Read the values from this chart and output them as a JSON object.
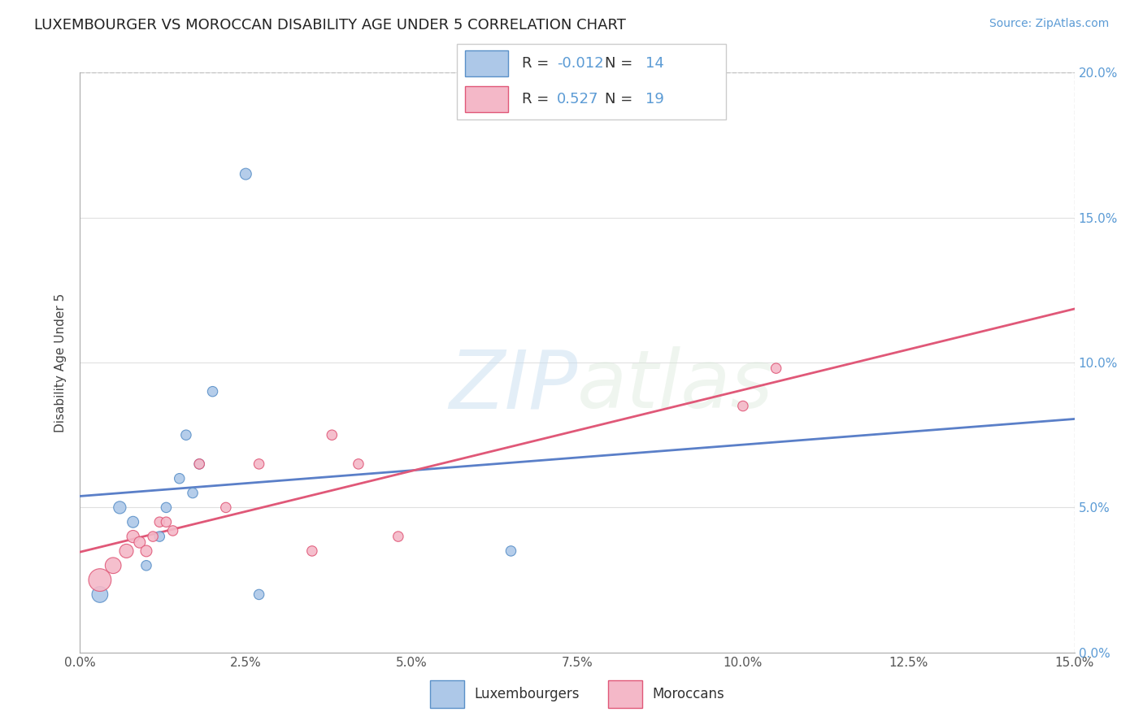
{
  "title": "LUXEMBOURGER VS MOROCCAN DISABILITY AGE UNDER 5 CORRELATION CHART",
  "source": "Source: ZipAtlas.com",
  "ylabel": "Disability Age Under 5",
  "xlim": [
    0.0,
    0.15
  ],
  "ylim": [
    0.0,
    0.2
  ],
  "xticks": [
    0.0,
    0.025,
    0.05,
    0.075,
    0.1,
    0.125,
    0.15
  ],
  "yticks_right": [
    0.0,
    0.05,
    0.1,
    0.15,
    0.2
  ],
  "lux_R": -0.012,
  "lux_N": 14,
  "mor_R": 0.527,
  "mor_N": 19,
  "lux_color": "#adc8e8",
  "mor_color": "#f4b8c8",
  "lux_edge_color": "#5a90c8",
  "mor_edge_color": "#e05878",
  "lux_line_color": "#5a7fc8",
  "mor_line_color": "#e05878",
  "grid_color": "#e0e0e0",
  "lux_scatter_x": [
    0.003,
    0.006,
    0.008,
    0.01,
    0.012,
    0.013,
    0.015,
    0.016,
    0.017,
    0.018,
    0.02,
    0.025,
    0.027,
    0.065
  ],
  "lux_scatter_y": [
    0.02,
    0.05,
    0.045,
    0.03,
    0.04,
    0.05,
    0.06,
    0.075,
    0.055,
    0.065,
    0.09,
    0.165,
    0.02,
    0.035
  ],
  "lux_scatter_s": [
    200,
    120,
    100,
    80,
    80,
    80,
    80,
    80,
    80,
    80,
    80,
    100,
    80,
    80
  ],
  "mor_scatter_x": [
    0.003,
    0.005,
    0.007,
    0.008,
    0.009,
    0.01,
    0.011,
    0.012,
    0.013,
    0.014,
    0.018,
    0.022,
    0.027,
    0.035,
    0.038,
    0.042,
    0.048,
    0.1,
    0.105
  ],
  "mor_scatter_y": [
    0.025,
    0.03,
    0.035,
    0.04,
    0.038,
    0.035,
    0.04,
    0.045,
    0.045,
    0.042,
    0.065,
    0.05,
    0.065,
    0.035,
    0.075,
    0.065,
    0.04,
    0.085,
    0.098
  ],
  "mor_scatter_s": [
    400,
    200,
    150,
    120,
    100,
    100,
    80,
    80,
    80,
    80,
    80,
    80,
    80,
    80,
    80,
    80,
    80,
    80,
    80
  ],
  "watermark_zip": "ZIP",
  "watermark_atlas": "atlas",
  "lux_label": "Luxembourgers",
  "mor_label": "Moroccans"
}
